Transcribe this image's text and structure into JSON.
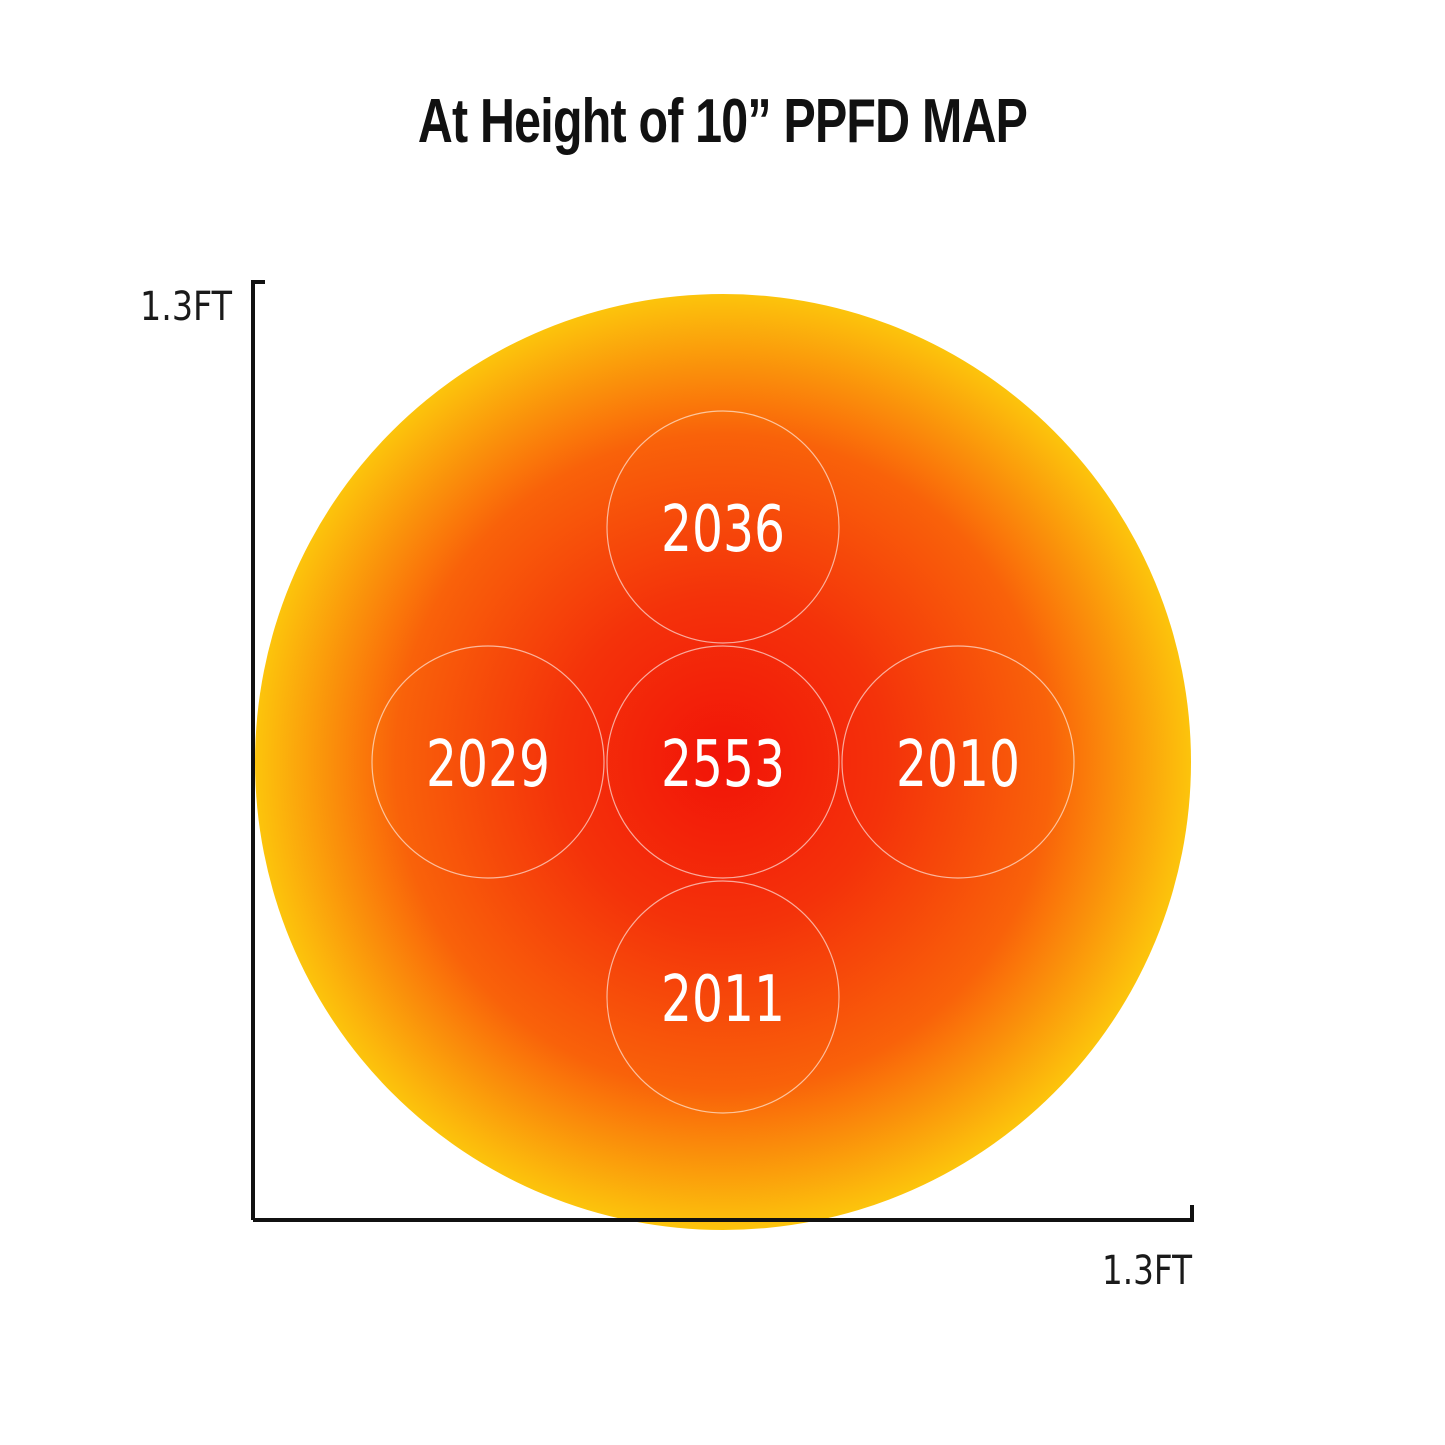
{
  "title": "At Height of 10” PPFD MAP",
  "chart_data": {
    "type": "heatmap",
    "title": "At Height of 10” PPFD MAP",
    "x_axis_label": "1.3FT",
    "y_axis_label": "1.3FT",
    "grid": false,
    "points": [
      {
        "position": "top",
        "value": 2036
      },
      {
        "position": "left",
        "value": 2029
      },
      {
        "position": "center",
        "value": 2553
      },
      {
        "position": "right",
        "value": 2010
      },
      {
        "position": "bottom",
        "value": 2011
      }
    ],
    "colors": {
      "center": "#f21408",
      "mid": "#f9520a",
      "edge": "#fcc40c",
      "marker_outline": "#ffffff",
      "text": "#ffffff"
    }
  }
}
